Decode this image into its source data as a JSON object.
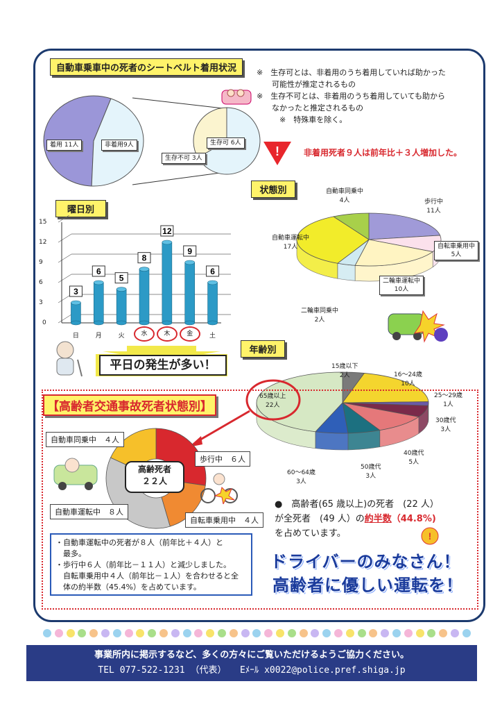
{
  "belt": {
    "title": "自動車乗車中の死者のシートベルト着用状況",
    "notes": [
      "※　生存可とは、非着用のうち着用していれば助かった",
      "　　可能性が推定されるもの",
      "※　生存不可とは、非着用のうち着用していても助から",
      "　　なかったと推定されるもの",
      "　　　※　特殊車を除く。"
    ],
    "warning": "非着用死者９人は前年比＋３人増加した。",
    "pie_labels": {
      "wearing": "着用 11人",
      "not_wearing": "非着用9人",
      "survivable": "生存可 6人",
      "unsurvivable": "生存不可 3人"
    }
  },
  "weekday": {
    "title": "曜日別",
    "banner": "平日の発生が多い！",
    "yticks": [
      "15",
      "12",
      "9",
      "6",
      "3",
      "0"
    ]
  },
  "status": {
    "title": "状態別",
    "labels": {
      "walking": "歩行中\n11人",
      "bicycle": "自転車乗用中\n5人",
      "moto_drive": "二輪車運転中\n10人",
      "moto_ride": "二輪車同乗中\n2人",
      "car_drive": "自動車運転中\n17人",
      "car_ride": "自動車同乗中\n4人"
    }
  },
  "age": {
    "title": "年齢別",
    "labels": {
      "under15": "15歳以下\n2人",
      "a16_24": "16～24歳\n10人",
      "a25_29": "25～29歳\n1人",
      "a30s": "30歳代\n3人",
      "a40s": "40歳代\n5人",
      "a50s": "50歳代\n3人",
      "a60_64": "60～64歳\n3人",
      "over65": "65歳以上\n22人"
    }
  },
  "elderly": {
    "title": "【高齢者交通事故死者状態別】",
    "center": "高齢死者\n２２人",
    "labels": {
      "car_ride": "自動車同乗中　４人",
      "walking": "歩行中　６人",
      "car_drive": "自動車運転中　８人",
      "bicycle": "自転車乗用中　４人"
    },
    "bullets": [
      "・自動車運転中の死者が８人（前年比＋４人）と",
      "　最多。",
      "・歩行中６人（前年比－１１人）と減少しました。",
      "　自転車乗用中４人（前年比－１人）を合わせると全",
      "　体の約半数（45.4%）を占めています。"
    ],
    "statement_1": "●　高齢者(65 歳以上)の死者　(22 人）",
    "statement_2a": "が全死者　(49 人）の",
    "statement_2b": "約半数",
    "statement_2c": "（44.8%)",
    "statement_3": "を占めています。",
    "slogan_1": "ドライバーのみなさん！",
    "slogan_2": "高齢者に優しい運転を！"
  },
  "footer": {
    "line1": "事業所内に掲示するなど、多くの方々にご覧いただけるようご協力ください。",
    "line2": "TEL 077-522-1231 （代表）　　Eﾒｰﾙ x0022@police.pref.shiga.jp"
  },
  "chart_data": [
    {
      "type": "pie",
      "title": "自動車乗車中の死者のシートベルト着用状況",
      "categories": [
        "着用",
        "非着用"
      ],
      "values": [
        11,
        9
      ],
      "breakdown": {
        "of": "非着用",
        "categories": [
          "生存可",
          "生存不可"
        ],
        "values": [
          6,
          3
        ]
      }
    },
    {
      "type": "bar",
      "title": "曜日別",
      "categories": [
        "日",
        "月",
        "火",
        "水",
        "木",
        "金",
        "土"
      ],
      "values": [
        3,
        6,
        5,
        8,
        12,
        9,
        6
      ],
      "ylim": [
        0,
        15
      ],
      "highlighted": [
        "水",
        "木",
        "金"
      ],
      "grid": true
    },
    {
      "type": "pie",
      "title": "状態別",
      "categories": [
        "歩行中",
        "自転車乗用中",
        "二輪車運転中",
        "二輪車同乗中",
        "自動車運転中",
        "自動車同乗中"
      ],
      "values": [
        11,
        5,
        10,
        2,
        17,
        4
      ],
      "colors": [
        "#a09ad8",
        "#fbe1ec",
        "#fff4c2",
        "#cfeaf2",
        "#f2ec2a",
        "#a8d04a"
      ]
    },
    {
      "type": "pie",
      "title": "年齢別",
      "categories": [
        "15歳以下",
        "16～24歳",
        "25～29歳",
        "30歳代",
        "40歳代",
        "50歳代",
        "60～64歳",
        "65歳以上"
      ],
      "values": [
        2,
        10,
        1,
        3,
        5,
        3,
        3,
        22
      ],
      "colors": [
        "#7a7a7a",
        "#f4d52e",
        "#6b5aa8",
        "#7a2a4a",
        "#e5787a",
        "#1c7080",
        "#2f5fb8",
        "#d6e8c4"
      ]
    },
    {
      "type": "pie",
      "title": "高齢者交通事故死者状態別",
      "categories": [
        "歩行中",
        "自転車乗用中",
        "自動車運転中",
        "自動車同乗中"
      ],
      "values": [
        6,
        4,
        8,
        4
      ],
      "colors": [
        "#d8282e",
        "#f08a32",
        "#c8c8c8",
        "#f6c02a"
      ]
    }
  ],
  "colors": {
    "frame": "#1c3a6e",
    "accent_red": "#d8282e",
    "tag_yellow": "#fff36a",
    "slogan_blue": "#1a3b9c",
    "footer_bg": "#2a3c86"
  }
}
